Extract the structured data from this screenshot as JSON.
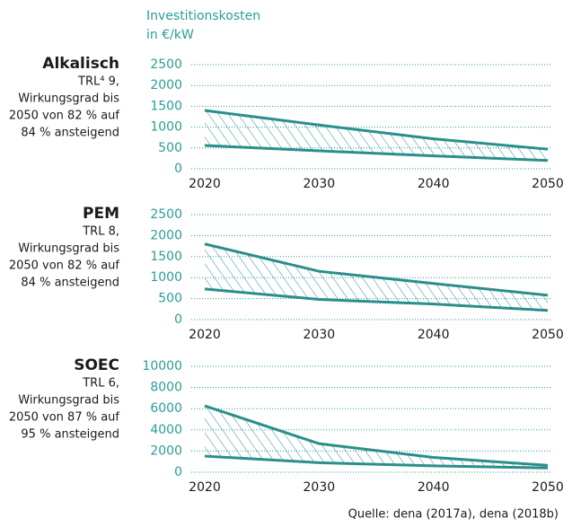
{
  "ylabel": [
    "Investitionskosten",
    "in €/kW"
  ],
  "source": "Quelle: dena (2017a), dena (2018b)",
  "chart_data": [
    {
      "type": "area",
      "title": "Alkalisch",
      "subtitle": [
        "TRL⁴ 9,",
        "Wirkungsgrad bis",
        "2050 von 82 % auf",
        "84 % ansteigend"
      ],
      "x": [
        2020,
        2030,
        2040,
        2050
      ],
      "upper": [
        1400,
        1050,
        720,
        470
      ],
      "lower": [
        560,
        430,
        310,
        200
      ],
      "color": "#2a8f8a",
      "xlim": [
        2020,
        2050
      ],
      "xticks": [
        2020,
        2030,
        2040,
        2050
      ],
      "ylim": [
        0,
        2500
      ],
      "yticks": [
        0,
        500,
        1000,
        1500,
        2000,
        2500
      ],
      "grid": true
    },
    {
      "type": "area",
      "title": "PEM",
      "subtitle": [
        "TRL 8,",
        "Wirkungsgrad bis",
        "2050 von 82 % auf",
        "84 % ansteigend"
      ],
      "x": [
        2020,
        2030,
        2040,
        2050
      ],
      "upper": [
        1800,
        1150,
        860,
        580
      ],
      "lower": [
        730,
        480,
        370,
        220
      ],
      "color": "#2a8f8a",
      "xlim": [
        2020,
        2050
      ],
      "xticks": [
        2020,
        2030,
        2040,
        2050
      ],
      "ylim": [
        0,
        2500
      ],
      "yticks": [
        0,
        500,
        1000,
        1500,
        2000,
        2500
      ],
      "grid": true
    },
    {
      "type": "area",
      "title": "SOEC",
      "subtitle": [
        "TRL 6,",
        "Wirkungsgrad bis",
        "2050 von 87 % auf",
        "95 % ansteigend"
      ],
      "x": [
        2020,
        2030,
        2040,
        2050
      ],
      "upper": [
        6270,
        2700,
        1400,
        650
      ],
      "lower": [
        1520,
        900,
        600,
        400
      ],
      "color": "#2a8f8a",
      "xlim": [
        2020,
        2050
      ],
      "xticks": [
        2020,
        2030,
        2040,
        2050
      ],
      "ylim": [
        0,
        10000
      ],
      "yticks": [
        0,
        2000,
        4000,
        6000,
        8000,
        10000
      ],
      "grid": true
    }
  ]
}
